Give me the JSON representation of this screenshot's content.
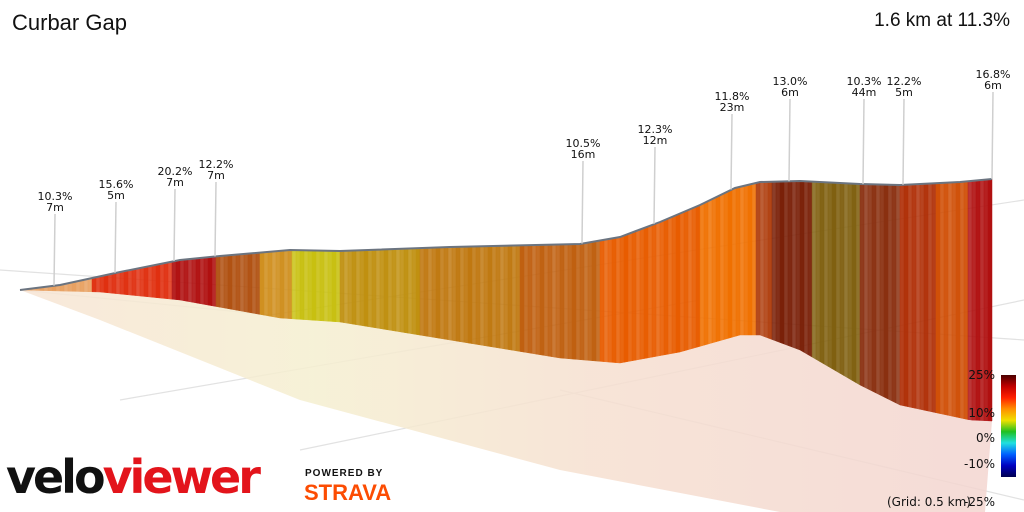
{
  "header": {
    "title": "Curbar Gap",
    "summary": "1.6 km at 11.3%"
  },
  "chart_data": {
    "type": "area",
    "title": "Curbar Gap",
    "subtitle": "1.6 km at 11.3%",
    "annotations": [
      {
        "gradient": "10.3%",
        "length": "7m"
      },
      {
        "gradient": "15.6%",
        "length": "5m"
      },
      {
        "gradient": "20.2%",
        "length": "7m"
      },
      {
        "gradient": "12.2%",
        "length": "7m"
      },
      {
        "gradient": "10.5%",
        "length": "16m"
      },
      {
        "gradient": "12.3%",
        "length": "12m"
      },
      {
        "gradient": "11.8%",
        "length": "23m"
      },
      {
        "gradient": "13.0%",
        "length": "6m"
      },
      {
        "gradient": "10.3%",
        "length": "44m"
      },
      {
        "gradient": "12.2%",
        "length": "5m"
      },
      {
        "gradient": "16.8%",
        "length": "6m"
      }
    ],
    "colorbar": {
      "ticks": [
        "25%",
        "10%",
        "0%",
        "-10%",
        "-25%"
      ],
      "colors": [
        "#4a0000",
        "#c00000",
        "#ff2000",
        "#ff9000",
        "#f0e000",
        "#20c020",
        "#20e0e0",
        "#0060ff",
        "#0000c0",
        "#000050"
      ]
    },
    "grid_note": "(Grid: 0.5 km)"
  },
  "branding": {
    "logo_part1": "velo",
    "logo_part2": "viewer",
    "powered_by": "POWERED BY",
    "strava": "STRAVA"
  }
}
